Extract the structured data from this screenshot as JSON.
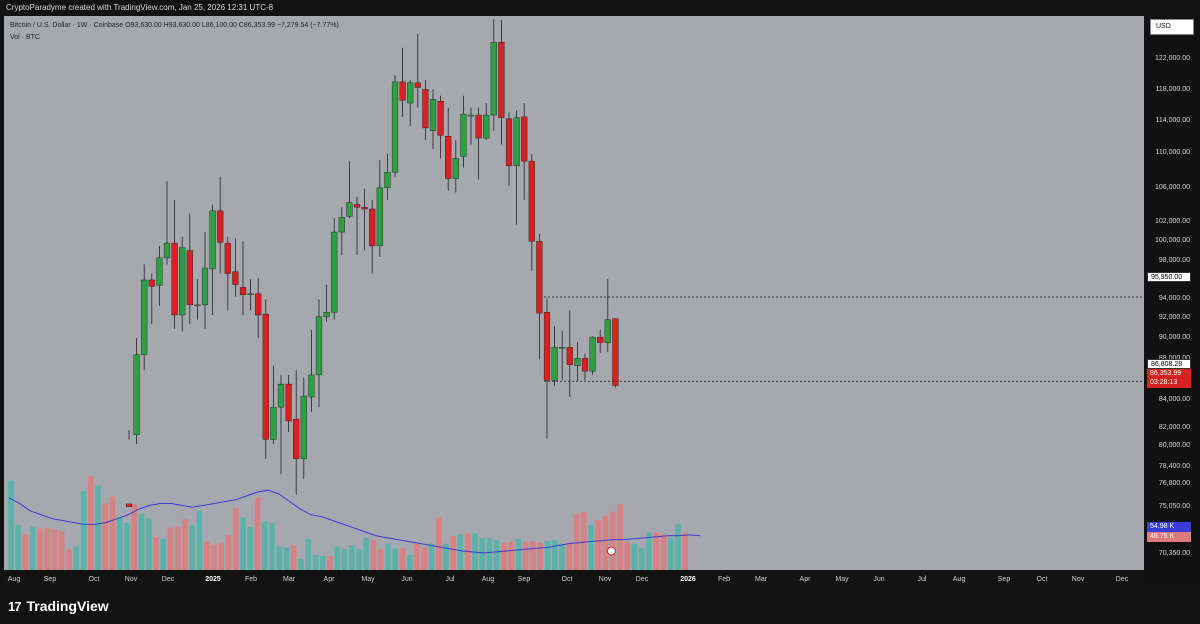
{
  "credit": "CryptoParadyme created with TradingView.com, Jan 25, 2026 12:31 UTC-8",
  "legend": {
    "symbol_line": "Bitcoin / U.S. Dollar · 1W · Coinbase  O93,630.00  H93,630.00  L86,100.00  C86,353.99  −7,279.54 (−7.77%)",
    "volume_line": "Vol · BTC"
  },
  "currency_button": "USD",
  "price_ticks": [
    "122,000.00",
    "118,000.00",
    "114,000.00",
    "110,000.00",
    "106,000.00",
    "102,000.00",
    "100,000.00",
    "98,000.00",
    "94,000.00",
    "92,000.00",
    "90,000.00",
    "88,000.00",
    "84,000.00",
    "82,000.00",
    "80,000.00",
    "78,400.00",
    "76,800.00",
    "75,050.00",
    "72,850.00",
    "70,350.00"
  ],
  "time_ticks": [
    "Aug",
    "Sep",
    "Oct",
    "Nov",
    "Dec",
    "2025",
    "Feb",
    "Mar",
    "Apr",
    "May",
    "Jun",
    "Jul",
    "Aug",
    "Sep",
    "Oct",
    "Nov",
    "Dec",
    "2026",
    "Feb",
    "Mar",
    "Apr",
    "May",
    "Jun",
    "Jul",
    "Aug",
    "Sep",
    "Oct",
    "Nov",
    "Dec"
  ],
  "badges": {
    "level_high": "95,950.00",
    "level_low": "86,808.28",
    "last_price": "86,353.99",
    "countdown": "03:28:13",
    "vol_ma": "54.98 K",
    "vol_last": "48.75 K"
  },
  "colors": {
    "up": "#2ea043",
    "down": "#d92121",
    "vol_up": "#4fb3a8",
    "vol_down": "#e07a7a",
    "ma": "#3b3bd6",
    "background": "#a6a8b0"
  },
  "brand": {
    "logo": "17",
    "name": "TradingView"
  },
  "candles": [
    [
      73500,
      73200,
      81500,
      80500
    ],
    [
      81000,
      89700,
      91500,
      80000
    ],
    [
      89700,
      97800,
      99500,
      88000
    ],
    [
      97800,
      97100,
      98500,
      93000
    ],
    [
      97200,
      100200,
      101500,
      95000
    ],
    [
      100200,
      101800,
      108500,
      99500
    ],
    [
      101800,
      94000,
      106500,
      92500
    ],
    [
      94000,
      101300,
      102500,
      92200
    ],
    [
      101000,
      95100,
      105000,
      93000
    ],
    [
      95000,
      95100,
      97900,
      93500
    ],
    [
      95100,
      99100,
      103000,
      92500
    ],
    [
      99000,
      105300,
      106000,
      94000
    ],
    [
      105300,
      101900,
      109000,
      98500
    ],
    [
      101800,
      98500,
      102500,
      94500
    ],
    [
      98700,
      97300,
      102300,
      96000
    ],
    [
      97000,
      96200,
      102000,
      94000
    ],
    [
      96300,
      96300,
      97900,
      94500
    ],
    [
      96300,
      94000,
      98000,
      91500
    ],
    [
      94100,
      80500,
      95700,
      78400
    ],
    [
      80500,
      84000,
      88500,
      80000
    ],
    [
      84000,
      86500,
      87500,
      76700
    ],
    [
      86500,
      82500,
      87500,
      81300
    ],
    [
      82700,
      78400,
      88000,
      74500
    ],
    [
      78400,
      85200,
      87200,
      76200
    ],
    [
      85100,
      87500,
      92400,
      83500
    ],
    [
      87500,
      93800,
      95700,
      84000
    ],
    [
      93800,
      94300,
      97300,
      93300
    ],
    [
      94300,
      103000,
      104500,
      93500
    ],
    [
      103000,
      104600,
      105700,
      100500
    ],
    [
      104700,
      106200,
      110700,
      104500
    ],
    [
      106000,
      105700,
      106800,
      100500
    ],
    [
      105700,
      105500,
      107700,
      101000
    ],
    [
      105500,
      101500,
      106500,
      98500
    ],
    [
      101500,
      107800,
      110800,
      100300
    ],
    [
      107800,
      109500,
      111500,
      106500
    ],
    [
      109500,
      119300,
      120000,
      109000
    ],
    [
      119300,
      117300,
      123000,
      115500
    ],
    [
      117000,
      119200,
      119500,
      114500
    ],
    [
      119200,
      118700,
      124500,
      116500
    ],
    [
      118500,
      114300,
      119500,
      113000
    ],
    [
      114000,
      117400,
      118500,
      112000
    ],
    [
      117200,
      113500,
      117800,
      111000
    ],
    [
      113400,
      108800,
      116500,
      107500
    ],
    [
      108800,
      111000,
      113000,
      107300
    ],
    [
      111200,
      115800,
      117800,
      110000
    ],
    [
      115700,
      115700,
      116500,
      112500
    ],
    [
      115700,
      113200,
      116500,
      108700
    ],
    [
      113200,
      115700,
      117000,
      113000
    ],
    [
      115700,
      123600,
      126100,
      114000
    ],
    [
      123600,
      115400,
      126000,
      112500
    ],
    [
      115300,
      110200,
      116000,
      108000
    ],
    [
      110200,
      115400,
      116200,
      103800
    ],
    [
      115500,
      110700,
      117000,
      106500
    ],
    [
      110700,
      102000,
      111500,
      98800
    ],
    [
      102000,
      94200,
      102800,
      89200
    ],
    [
      94300,
      86900,
      95800,
      80600
    ],
    [
      86900,
      90500,
      92800,
      86300
    ],
    [
      90500,
      90500,
      92300,
      86900
    ],
    [
      90500,
      88600,
      94500,
      85100
    ],
    [
      88500,
      89300,
      91100,
      86800
    ],
    [
      89300,
      87900,
      89800,
      86900
    ],
    [
      87900,
      91600,
      91700,
      87500
    ],
    [
      91600,
      91000,
      92400,
      89900
    ],
    [
      91000,
      93500,
      97900,
      90000
    ],
    [
      93600,
      86350,
      93600,
      86100
    ]
  ],
  "volumes": [
    [
      95,
      1
    ],
    [
      48,
      1
    ],
    [
      38,
      0
    ],
    [
      46,
      1
    ],
    [
      44,
      0
    ],
    [
      45,
      0
    ],
    [
      43,
      0
    ],
    [
      41,
      0
    ],
    [
      22,
      0
    ],
    [
      25,
      1
    ],
    [
      84,
      1
    ],
    [
      100,
      0
    ],
    [
      90,
      1
    ],
    [
      71,
      0
    ],
    [
      78,
      0
    ],
    [
      56,
      1
    ],
    [
      50,
      1
    ],
    [
      70,
      0
    ],
    [
      60,
      1
    ],
    [
      55,
      1
    ],
    [
      35,
      0
    ],
    [
      33,
      1
    ],
    [
      45,
      0
    ],
    [
      46,
      0
    ],
    [
      54,
      0
    ],
    [
      48,
      1
    ],
    [
      63,
      1
    ],
    [
      30,
      0
    ],
    [
      27,
      0
    ],
    [
      29,
      0
    ],
    [
      37,
      0
    ],
    [
      66,
      0
    ],
    [
      56,
      1
    ],
    [
      46,
      1
    ],
    [
      77,
      0
    ],
    [
      52,
      1
    ],
    [
      50,
      1
    ],
    [
      25,
      1
    ],
    [
      24,
      1
    ],
    [
      26,
      0
    ],
    [
      12,
      1
    ],
    [
      33,
      1
    ],
    [
      16,
      1
    ],
    [
      15,
      1
    ],
    [
      15,
      0
    ],
    [
      25,
      1
    ],
    [
      22,
      1
    ],
    [
      26,
      1
    ],
    [
      22,
      1
    ],
    [
      34,
      1
    ],
    [
      32,
      0
    ],
    [
      22,
      0
    ],
    [
      28,
      1
    ],
    [
      23,
      1
    ],
    [
      23,
      0
    ],
    [
      16,
      1
    ],
    [
      28,
      0
    ],
    [
      24,
      0
    ],
    [
      28,
      1
    ],
    [
      56,
      0
    ],
    [
      28,
      1
    ],
    [
      36,
      0
    ],
    [
      38,
      1
    ],
    [
      39,
      0
    ],
    [
      39,
      1
    ],
    [
      34,
      1
    ],
    [
      34,
      1
    ],
    [
      32,
      1
    ],
    [
      29,
      0
    ],
    [
      30,
      0
    ],
    [
      33,
      1
    ],
    [
      30,
      0
    ],
    [
      31,
      0
    ],
    [
      29,
      0
    ],
    [
      31,
      1
    ],
    [
      32,
      1
    ],
    [
      28,
      1
    ],
    [
      29,
      0
    ],
    [
      60,
      0
    ],
    [
      62,
      0
    ],
    [
      48,
      1
    ],
    [
      53,
      0
    ],
    [
      58,
      0
    ],
    [
      62,
      0
    ],
    [
      70,
      0
    ],
    [
      30,
      0
    ],
    [
      28,
      1
    ],
    [
      23,
      1
    ],
    [
      40,
      1
    ],
    [
      40,
      0
    ],
    [
      38,
      0
    ],
    [
      34,
      1
    ],
    [
      49,
      1
    ],
    [
      40,
      0
    ]
  ],
  "ma_line": [
    75800,
    75500,
    75100,
    74900,
    74700,
    74600,
    74500,
    74400,
    74400,
    74500,
    74700,
    74900,
    75200,
    75400,
    75500,
    75500,
    75400,
    75300,
    75400,
    75500,
    75600,
    75700,
    75900,
    76100,
    76200,
    76000,
    75600,
    75200,
    74900,
    74800,
    74600,
    74400,
    74200,
    74000,
    73800,
    73700,
    73600,
    73500,
    73400,
    73300,
    73200,
    73100,
    73000,
    72950,
    72900,
    72950,
    73000,
    73050,
    73100,
    73150,
    73200,
    73300,
    73400,
    73450,
    73500,
    73550,
    73600,
    73600,
    73650,
    73700,
    73750,
    73800,
    73800,
    73850,
    73800
  ]
}
